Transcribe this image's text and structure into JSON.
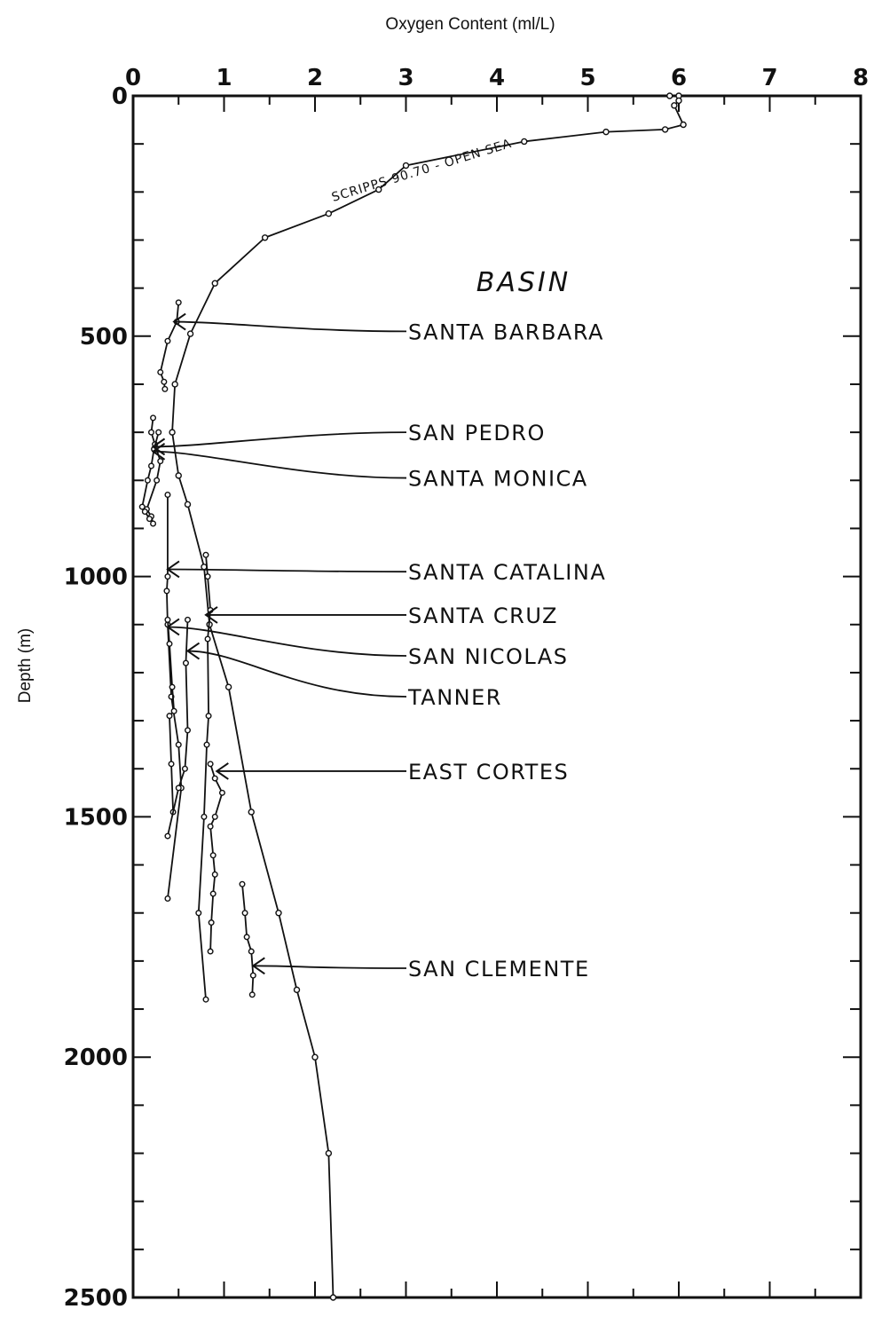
{
  "chart_data": {
    "type": "line",
    "title": "",
    "xlabel": "Oxygen Content (ml/L)",
    "ylabel": "Depth (m)",
    "x_axis_position": "top",
    "y_axis_inverted": true,
    "xlim": [
      0,
      8
    ],
    "ylim": [
      0,
      2500
    ],
    "x_ticks": [
      "0",
      "1",
      "2",
      "3",
      "4",
      "5",
      "6",
      "7",
      "8"
    ],
    "y_ticks": [
      "0",
      "500",
      "1000",
      "1500",
      "2000",
      "2500"
    ],
    "grid": false,
    "legend": "none",
    "group_title": "BASIN",
    "open_sea_series": {
      "name": "SCRIPPS 90.70 - OPEN SEA",
      "values": [
        [
          5.9,
          0
        ],
        [
          6.0,
          0
        ],
        [
          6.0,
          10
        ],
        [
          5.95,
          20
        ],
        [
          6.05,
          60
        ],
        [
          5.85,
          70
        ],
        [
          5.2,
          75
        ],
        [
          4.3,
          95
        ],
        [
          3.0,
          145
        ],
        [
          2.7,
          195
        ],
        [
          2.15,
          245
        ],
        [
          1.45,
          295
        ],
        [
          0.9,
          390
        ],
        [
          0.63,
          495
        ],
        [
          0.46,
          600
        ],
        [
          0.43,
          700
        ],
        [
          0.5,
          790
        ],
        [
          0.6,
          850
        ],
        [
          0.78,
          980
        ],
        [
          0.84,
          1100
        ],
        [
          1.05,
          1230
        ],
        [
          1.3,
          1490
        ],
        [
          1.6,
          1700
        ],
        [
          1.8,
          1860
        ],
        [
          2.0,
          2000
        ],
        [
          2.15,
          2200
        ],
        [
          2.2,
          2500
        ]
      ]
    },
    "series": [
      {
        "name": "SANTA BARBARA",
        "values": [
          [
            0.5,
            430
          ],
          [
            0.48,
            470
          ],
          [
            0.38,
            510
          ],
          [
            0.3,
            575
          ],
          [
            0.34,
            595
          ],
          [
            0.35,
            610
          ]
        ]
      },
      {
        "name": "SAN PEDRO",
        "values": [
          [
            0.22,
            670
          ],
          [
            0.2,
            700
          ],
          [
            0.24,
            725
          ],
          [
            0.3,
            760
          ],
          [
            0.26,
            800
          ],
          [
            0.15,
            860
          ],
          [
            0.2,
            875
          ],
          [
            0.22,
            890
          ]
        ]
      },
      {
        "name": "SANTA MONICA",
        "values": [
          [
            0.28,
            700
          ],
          [
            0.23,
            735
          ],
          [
            0.2,
            770
          ],
          [
            0.16,
            800
          ],
          [
            0.1,
            855
          ],
          [
            0.13,
            865
          ],
          [
            0.18,
            880
          ]
        ]
      },
      {
        "name": "SANTA CATALINA",
        "values": [
          [
            0.38,
            830
          ],
          [
            0.38,
            1000
          ],
          [
            0.37,
            1030
          ],
          [
            0.38,
            1100
          ],
          [
            0.42,
            1250
          ],
          [
            0.5,
            1350
          ],
          [
            0.53,
            1440
          ],
          [
            0.38,
            1670
          ]
        ]
      },
      {
        "name": "SANTA CRUZ",
        "values": [
          [
            0.8,
            955
          ],
          [
            0.82,
            1000
          ],
          [
            0.85,
            1070
          ],
          [
            0.82,
            1130
          ],
          [
            0.83,
            1290
          ],
          [
            0.81,
            1350
          ],
          [
            0.78,
            1500
          ],
          [
            0.72,
            1700
          ],
          [
            0.8,
            1880
          ]
        ]
      },
      {
        "name": "SAN NICOLAS",
        "values": [
          [
            0.38,
            1090
          ],
          [
            0.4,
            1140
          ],
          [
            0.43,
            1230
          ],
          [
            0.45,
            1280
          ],
          [
            0.4,
            1290
          ],
          [
            0.42,
            1390
          ],
          [
            0.44,
            1490
          ]
        ]
      },
      {
        "name": "TANNER",
        "values": [
          [
            0.6,
            1090
          ],
          [
            0.58,
            1180
          ],
          [
            0.6,
            1320
          ],
          [
            0.57,
            1400
          ],
          [
            0.5,
            1440
          ],
          [
            0.38,
            1540
          ]
        ]
      },
      {
        "name": "EAST CORTES",
        "values": [
          [
            0.85,
            1390
          ],
          [
            0.9,
            1420
          ],
          [
            0.98,
            1450
          ],
          [
            0.9,
            1500
          ],
          [
            0.85,
            1520
          ],
          [
            0.88,
            1580
          ],
          [
            0.9,
            1620
          ],
          [
            0.88,
            1660
          ],
          [
            0.86,
            1720
          ],
          [
            0.85,
            1780
          ]
        ]
      },
      {
        "name": "SAN CLEMENTE",
        "values": [
          [
            1.2,
            1640
          ],
          [
            1.23,
            1700
          ],
          [
            1.25,
            1750
          ],
          [
            1.3,
            1780
          ],
          [
            1.32,
            1830
          ],
          [
            1.31,
            1870
          ]
        ]
      }
    ],
    "basin_label_depths": [
      {
        "name": "SANTA BARBARA",
        "depth": 490,
        "arrow_tip": [
          0.45,
          470
        ]
      },
      {
        "name": "SAN PEDRO",
        "depth": 700,
        "arrow_tip": [
          0.22,
          730
        ]
      },
      {
        "name": "SANTA MONICA",
        "depth": 795,
        "arrow_tip": [
          0.22,
          740
        ]
      },
      {
        "name": "SANTA CATALINA",
        "depth": 990,
        "arrow_tip": [
          0.38,
          985
        ]
      },
      {
        "name": "SANTA CRUZ",
        "depth": 1080,
        "arrow_tip": [
          0.8,
          1080
        ]
      },
      {
        "name": "SAN NICOLAS",
        "depth": 1165,
        "arrow_tip": [
          0.38,
          1105
        ]
      },
      {
        "name": "TANNER",
        "depth": 1250,
        "arrow_tip": [
          0.6,
          1155
        ]
      },
      {
        "name": "EAST CORTES",
        "depth": 1405,
        "arrow_tip": [
          0.92,
          1405
        ]
      },
      {
        "name": "SAN CLEMENTE",
        "depth": 1815,
        "arrow_tip": [
          1.32,
          1810
        ]
      }
    ]
  }
}
